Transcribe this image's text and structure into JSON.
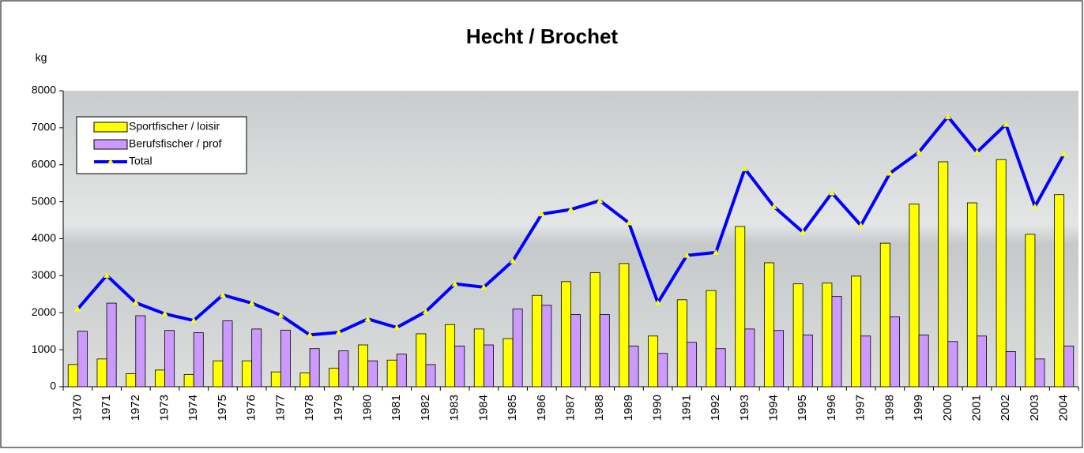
{
  "chart_data": {
    "type": "bar",
    "title": "Hecht / Brochet",
    "y_label": "kg",
    "categories": [
      "1970",
      "1971",
      "1972",
      "1973",
      "1974",
      "1975",
      "1976",
      "1977",
      "1978",
      "1979",
      "1980",
      "1981",
      "1982",
      "1983",
      "1984",
      "1985",
      "1986",
      "1987",
      "1988",
      "1989",
      "1990",
      "1991",
      "1992",
      "1993",
      "1994",
      "1995",
      "1996",
      "1997",
      "1998",
      "1999",
      "2000",
      "2001",
      "2002",
      "2003",
      "2004"
    ],
    "series": [
      {
        "name": "Sportfischer / loisir",
        "type": "bar",
        "color": "#ffff00",
        "values": [
          600,
          750,
          350,
          450,
          330,
          700,
          700,
          400,
          370,
          500,
          1130,
          720,
          1430,
          1680,
          1560,
          1300,
          2470,
          2840,
          3080,
          3330,
          1370,
          2350,
          2600,
          4330,
          3350,
          2780,
          2800,
          2990,
          3880,
          4940,
          6080,
          4970,
          6140,
          4120,
          5190
        ]
      },
      {
        "name": "Berufsfischer / prof",
        "type": "bar",
        "color": "#cc99ff",
        "values": [
          1500,
          2260,
          1920,
          1520,
          1460,
          1780,
          1560,
          1530,
          1030,
          970,
          700,
          880,
          600,
          1100,
          1130,
          2100,
          2200,
          1950,
          1950,
          1100,
          900,
          1200,
          1030,
          1560,
          1520,
          1400,
          2440,
          1370,
          1890,
          1400,
          1220,
          1370,
          950,
          750,
          1100
        ]
      },
      {
        "name": "Total",
        "type": "line",
        "color": "#0000ff",
        "marker_color": "#ffff00",
        "values": [
          2100,
          3010,
          2270,
          1970,
          1790,
          2480,
          2260,
          1930,
          1400,
          1470,
          1830,
          1600,
          2030,
          2780,
          2690,
          3400,
          4670,
          4790,
          5030,
          4430,
          2270,
          3550,
          3630,
          5890,
          4870,
          4180,
          5240,
          4360,
          5770,
          6340,
          7300,
          6340,
          7090,
          4870,
          6290
        ]
      }
    ],
    "ylim": [
      0,
      8000
    ],
    "yticks": [
      0,
      1000,
      2000,
      3000,
      4000,
      5000,
      6000,
      7000,
      8000
    ],
    "legend": "upper left"
  }
}
